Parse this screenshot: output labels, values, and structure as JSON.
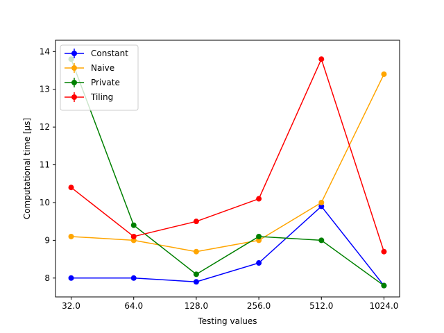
{
  "chart_data": {
    "type": "line",
    "title": "",
    "xlabel": "Testing values",
    "ylabel": "Computational time [µs]",
    "categories": [
      "32.0",
      "64.0",
      "128.0",
      "256.0",
      "512.0",
      "1024.0"
    ],
    "ylim": [
      7.5,
      14.3
    ],
    "yticks": [
      8,
      9,
      10,
      11,
      12,
      13,
      14
    ],
    "grid": false,
    "legend_position": "top-left",
    "series": [
      {
        "name": "Constant",
        "color": "#0000ff",
        "values": [
          8.0,
          8.0,
          7.9,
          8.4,
          9.9,
          7.8
        ]
      },
      {
        "name": "Naive",
        "color": "#ffa500",
        "values": [
          9.1,
          9.0,
          8.7,
          9.0,
          10.0,
          13.4
        ]
      },
      {
        "name": "Private",
        "color": "#008000",
        "values": [
          13.8,
          9.4,
          8.1,
          9.1,
          9.0,
          7.8
        ]
      },
      {
        "name": "Tiling",
        "color": "#ff0000",
        "values": [
          10.4,
          9.1,
          9.5,
          10.1,
          13.8,
          8.7
        ]
      }
    ]
  }
}
